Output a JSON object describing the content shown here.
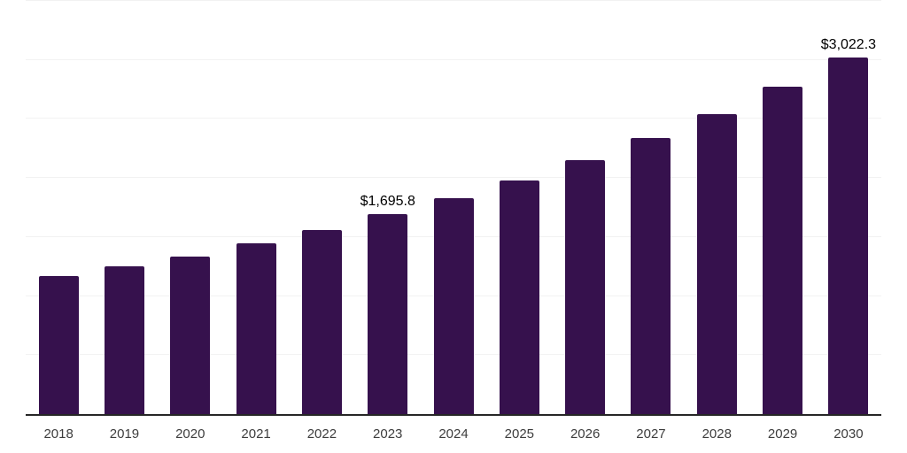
{
  "chart_data": {
    "type": "bar",
    "title": "",
    "xlabel": "",
    "ylabel": "",
    "categories": [
      "2018",
      "2019",
      "2020",
      "2021",
      "2022",
      "2023",
      "2024",
      "2025",
      "2026",
      "2027",
      "2028",
      "2029",
      "2030"
    ],
    "values": [
      1170,
      1253,
      1334,
      1446,
      1558,
      1695.8,
      1826,
      1980,
      2148,
      2337,
      2538,
      2770,
      3022.3
    ],
    "data_labels": {
      "2023": "$1,695.8",
      "2030": "$3,022.3"
    },
    "ylim": [
      0,
      3500
    ],
    "gridline_step": 500,
    "grid": "horizontal",
    "legend": "none",
    "colors": {
      "bar": "#36114d",
      "gridline": "#f2f2f2",
      "axis_line": "#262626",
      "tick_label": "#3d3d3d",
      "value_label": "#000000",
      "background": "#ffffff"
    }
  }
}
